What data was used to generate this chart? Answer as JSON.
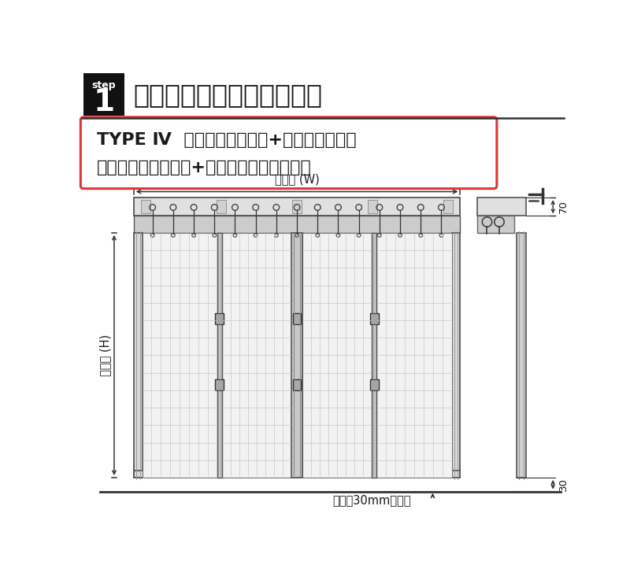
{
  "bg_color": "#ffffff",
  "title_box_color": "#111111",
  "title_text": "製品仕様をご確認下さい。",
  "step_label": "step",
  "step_num": "1",
  "type_line1": "TYPE Ⅳ  ビニールカーテン+レール＋間仕切",
  "type_line2": "　　　　　　　　　+中間フレーム　両開き",
  "label_width": "製品幅 (W)",
  "label_height": "製品高 (H)",
  "label_70": "70",
  "label_30": "30",
  "label_floor": "床から30mmあける",
  "border_color": "#e03535",
  "dim_color": "#333333",
  "frame_color": "#555555",
  "grid_color": "#cccccc",
  "dark_color": "#1a1a1a"
}
